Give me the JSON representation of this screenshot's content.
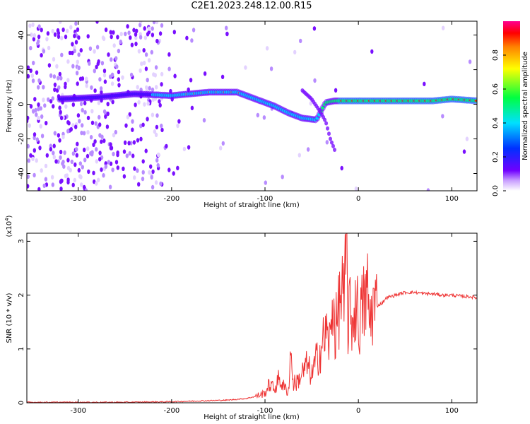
{
  "page": {
    "title": "C2E1.2023.248.12.00.R15"
  },
  "chart_data": [
    {
      "type": "heatmap",
      "xlabel": "Height of straight line (km)",
      "ylabel": "Frequency (Hz)",
      "xlim": [
        -355,
        127
      ],
      "ylim": [
        -50,
        48
      ],
      "xticks": [
        -300,
        -200,
        -100,
        0,
        100
      ],
      "yticks": [
        -40,
        -20,
        0,
        20,
        40
      ],
      "colorbar": {
        "label": "Normalized spectral amplitude",
        "range": [
          0,
          1
        ],
        "ticks": [
          "0.0",
          "0.2",
          "0.4",
          "0.6",
          "0.8"
        ],
        "colormap": [
          "#ffffff",
          "#c9a0ff",
          "#7000ff",
          "#0030ff",
          "#00e0ff",
          "#00ff40",
          "#ffff00",
          "#ff8000",
          "#ff0000",
          "#ff0090"
        ]
      },
      "ridge": {
        "x": [
          -320,
          -280,
          -240,
          -200,
          -160,
          -130,
          -110,
          -90,
          -75,
          -60,
          -45,
          -35,
          -25,
          -10,
          0,
          40,
          80,
          100,
          127
        ],
        "y": [
          3,
          4,
          6,
          5,
          7,
          7,
          3,
          -1,
          -5,
          -8,
          -9,
          1,
          2,
          2,
          2,
          2,
          2,
          3,
          2
        ]
      },
      "branch": {
        "x": [
          -60,
          -50,
          -40,
          -35,
          -30,
          -25
        ],
        "y": [
          8,
          3,
          -5,
          -10,
          -20,
          -27
        ]
      }
    },
    {
      "type": "line",
      "xlabel": "Height of straight line (km)",
      "ylabel": "SNR (10 * v/v)",
      "scale_label": "(x10",
      "scale_exponent": "4",
      "scale_suffix": ")",
      "xlim": [
        -355,
        127
      ],
      "ylim": [
        0,
        3.15
      ],
      "xticks": [
        -300,
        -200,
        -100,
        0,
        100
      ],
      "yticks": [
        0,
        1,
        2,
        3
      ],
      "series": [
        {
          "color": "#ee3333",
          "x": [
            -355,
            -300,
            -250,
            -200,
            -180,
            -160,
            -140,
            -120,
            -110,
            -100,
            -95,
            -90,
            -85,
            -80,
            -75,
            -72,
            -70,
            -65,
            -60,
            -55,
            -50,
            -45,
            -40,
            -35,
            -30,
            -27,
            -25,
            -22,
            -20,
            -17,
            -15,
            -13,
            -11,
            -10,
            -8,
            -5,
            -2,
            0,
            5,
            10,
            12,
            15,
            20,
            25,
            30,
            40,
            50,
            60,
            70,
            80,
            90,
            100,
            110,
            120,
            127
          ],
          "y": [
            0.01,
            0.01,
            0.01,
            0.02,
            0.03,
            0.04,
            0.05,
            0.08,
            0.12,
            0.18,
            0.35,
            0.25,
            0.45,
            0.3,
            0.2,
            1.05,
            0.35,
            0.4,
            0.55,
            0.7,
            0.5,
            0.8,
            1.0,
            1.3,
            1.1,
            2.05,
            1.3,
            1.6,
            1.9,
            2.1,
            1.6,
            3.15,
            1.3,
            1.8,
            1.5,
            1.6,
            2.0,
            1.4,
            1.8,
            2.05,
            1.45,
            1.8,
            1.8,
            1.85,
            1.95,
            2.0,
            2.05,
            2.05,
            2.03,
            2.02,
            2.0,
            2.0,
            1.98,
            1.97,
            1.95
          ]
        }
      ]
    }
  ]
}
